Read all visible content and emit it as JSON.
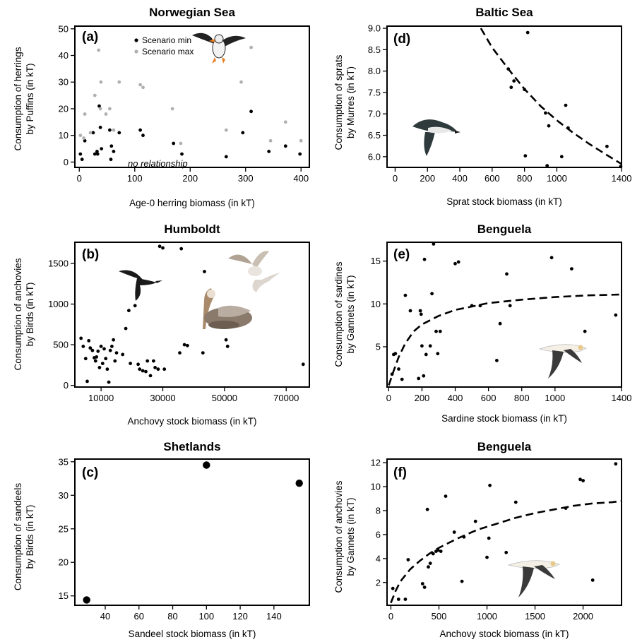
{
  "figure": {
    "panel_titles": [
      "Norwegian Sea",
      "Baltic Sea",
      "Humboldt",
      "Benguela",
      "Shetlands",
      "Benguela"
    ]
  },
  "chart_data": [
    {
      "id": "a",
      "type": "scatter",
      "title": "Norwegian Sea",
      "panel_label": "(a)",
      "xlabel": "Age-0 herring biomass (in kT)",
      "ylabel": [
        "Consumption of herrings",
        "by Puffins (in kT)"
      ],
      "xlim": [
        -8,
        415
      ],
      "ylim": [
        -2,
        51
      ],
      "xticks": [
        0,
        100,
        200,
        300,
        400
      ],
      "yticks": [
        0,
        10,
        20,
        30,
        40,
        50
      ],
      "annotation": "no relationship",
      "legend": {
        "position": "top-left",
        "entries": [
          "Scenario min",
          "Scenario max"
        ]
      },
      "icon": "puffin-icon",
      "series": [
        {
          "name": "Scenario min",
          "color": "#000000",
          "points": [
            [
              2,
              3
            ],
            [
              5,
              1
            ],
            [
              10,
              8
            ],
            [
              25,
              11
            ],
            [
              28,
              3
            ],
            [
              32,
              4
            ],
            [
              33,
              3
            ],
            [
              36,
              21
            ],
            [
              38,
              13
            ],
            [
              40,
              5
            ],
            [
              55,
              12
            ],
            [
              57,
              1
            ],
            [
              58,
              6
            ],
            [
              62,
              4
            ],
            [
              72,
              11
            ],
            [
              110,
              12
            ],
            [
              115,
              10
            ],
            [
              170,
              7
            ],
            [
              185,
              3
            ],
            [
              265,
              2
            ],
            [
              295,
              11
            ],
            [
              310,
              19
            ],
            [
              342,
              4
            ],
            [
              372,
              6
            ],
            [
              398,
              3
            ]
          ]
        },
        {
          "name": "Scenario max",
          "color": "#b0b0b0",
          "points": [
            [
              2,
              10
            ],
            [
              8,
              9
            ],
            [
              10,
              18
            ],
            [
              20,
              11
            ],
            [
              28,
              25
            ],
            [
              35,
              42
            ],
            [
              38,
              20
            ],
            [
              39,
              30
            ],
            [
              48,
              18
            ],
            [
              55,
              20
            ],
            [
              62,
              12
            ],
            [
              72,
              30
            ],
            [
              110,
              29
            ],
            [
              115,
              28
            ],
            [
              168,
              20
            ],
            [
              183,
              7
            ],
            [
              265,
              12
            ],
            [
              292,
              30
            ],
            [
              310,
              43
            ],
            [
              345,
              8
            ],
            [
              372,
              15
            ],
            [
              400,
              8
            ]
          ]
        }
      ]
    },
    {
      "id": "d",
      "type": "scatter",
      "title": "Baltic Sea",
      "panel_label": "(d)",
      "xlabel": "Sprat stock biomass (in kT)",
      "ylabel": [
        "Consumption of sprats",
        "by Murres (in kT)"
      ],
      "xlim": [
        -50,
        1400
      ],
      "ylim": [
        5.75,
        9.05
      ],
      "xticks": [
        0,
        200,
        400,
        600,
        800,
        1000,
        1400
      ],
      "yticks": [
        6.0,
        6.5,
        7.0,
        7.5,
        8.0,
        8.5,
        9.0
      ],
      "icon": "murre-icon",
      "series": [
        {
          "name": "",
          "color": "#000000",
          "points": [
            [
              700,
              8.05
            ],
            [
              718,
              7.62
            ],
            [
              735,
              7.77
            ],
            [
              800,
              7.57
            ],
            [
              805,
              6.02
            ],
            [
              820,
              8.9
            ],
            [
              930,
              7.02
            ],
            [
              940,
              5.79
            ],
            [
              950,
              6.72
            ],
            [
              1030,
              6.0
            ],
            [
              1055,
              7.2
            ],
            [
              1070,
              6.67
            ],
            [
              1310,
              6.24
            ],
            [
              1395,
              5.77
            ]
          ]
        }
      ],
      "trend": {
        "style": "dashed",
        "points": [
          [
            530,
            9.0
          ],
          [
            600,
            8.55
          ],
          [
            700,
            8.05
          ],
          [
            800,
            7.58
          ],
          [
            900,
            7.18
          ],
          [
            1000,
            6.85
          ],
          [
            1100,
            6.56
          ],
          [
            1200,
            6.3
          ],
          [
            1300,
            6.06
          ],
          [
            1400,
            5.83
          ]
        ]
      }
    },
    {
      "id": "b",
      "type": "scatter",
      "title": "Humboldt",
      "panel_label": "(b)",
      "xlabel": "Anchovy stock biomass (in kT)",
      "ylabel": [
        "Consumption of anchovies",
        "by Birds (in kT)"
      ],
      "xlim": [
        1500,
        77500
      ],
      "ylim": [
        -20,
        1760
      ],
      "xticks": [
        10000,
        30000,
        50000,
        70000
      ],
      "yticks": [
        0,
        500,
        1000,
        1500
      ],
      "icon": "bird-icon",
      "series": [
        {
          "name": "",
          "color": "#000000",
          "points": [
            [
              3500,
              580
            ],
            [
              4200,
              480
            ],
            [
              5000,
              330
            ],
            [
              5500,
              50
            ],
            [
              6000,
              550
            ],
            [
              6500,
              460
            ],
            [
              7200,
              430
            ],
            [
              7800,
              340
            ],
            [
              8200,
              300
            ],
            [
              8500,
              350
            ],
            [
              9000,
              420
            ],
            [
              9500,
              220
            ],
            [
              10000,
              480
            ],
            [
              10500,
              270
            ],
            [
              11000,
              450
            ],
            [
              11500,
              330
            ],
            [
              12000,
              200
            ],
            [
              12500,
              40
            ],
            [
              13000,
              430
            ],
            [
              13500,
              480
            ],
            [
              14000,
              560
            ],
            [
              14500,
              300
            ],
            [
              15000,
              400
            ],
            [
              17000,
              380
            ],
            [
              18000,
              700
            ],
            [
              19000,
              920
            ],
            [
              19500,
              270
            ],
            [
              21000,
              980
            ],
            [
              22000,
              260
            ],
            [
              22500,
              200
            ],
            [
              23500,
              180
            ],
            [
              24500,
              170
            ],
            [
              25000,
              300
            ],
            [
              26000,
              120
            ],
            [
              27000,
              300
            ],
            [
              27500,
              220
            ],
            [
              28500,
              200
            ],
            [
              29000,
              1710
            ],
            [
              30000,
              1690
            ],
            [
              30500,
              200
            ],
            [
              35500,
              400
            ],
            [
              36000,
              1680
            ],
            [
              37000,
              500
            ],
            [
              38000,
              490
            ],
            [
              43000,
              400
            ],
            [
              43500,
              1400
            ],
            [
              50500,
              560
            ],
            [
              51000,
              480
            ],
            [
              75500,
              260
            ]
          ]
        }
      ]
    },
    {
      "id": "e",
      "type": "scatter",
      "title": "Benguela",
      "panel_label": "(e)",
      "xlabel": "Sardine stock biomass (in kT)",
      "ylabel": [
        "Consumption of sardines",
        "by Gannets (in kT)"
      ],
      "xlim": [
        -10,
        1400
      ],
      "ylim": [
        0.3,
        17.2
      ],
      "xticks": [
        0,
        200,
        400,
        600,
        800,
        1000,
        1400
      ],
      "yticks": [
        5,
        10,
        15
      ],
      "icon": "gannet-icon",
      "series": [
        {
          "name": "",
          "color": "#000000",
          "points": [
            [
              20,
              1.8
            ],
            [
              30,
              4.1
            ],
            [
              40,
              4.2
            ],
            [
              60,
              2.4
            ],
            [
              80,
              1.2
            ],
            [
              100,
              11
            ],
            [
              130,
              9.2
            ],
            [
              180,
              1.3
            ],
            [
              190,
              9.2
            ],
            [
              195,
              8.8
            ],
            [
              200,
              5.1
            ],
            [
              210,
              1.6
            ],
            [
              215,
              15.2
            ],
            [
              225,
              4.1
            ],
            [
              250,
              5.1
            ],
            [
              260,
              11.2
            ],
            [
              270,
              17
            ],
            [
              285,
              6.8
            ],
            [
              295,
              4.2
            ],
            [
              310,
              6.8
            ],
            [
              400,
              14.7
            ],
            [
              420,
              14.9
            ],
            [
              500,
              9.8
            ],
            [
              550,
              9.8
            ],
            [
              650,
              3.4
            ],
            [
              670,
              7.7
            ],
            [
              710,
              13.5
            ],
            [
              730,
              9.8
            ],
            [
              980,
              15.4
            ],
            [
              1100,
              14.1
            ],
            [
              1180,
              6.8
            ],
            [
              1365,
              8.7
            ]
          ]
        }
      ],
      "trend": {
        "style": "dashed",
        "points": [
          [
            0,
            0.5
          ],
          [
            30,
            2.2
          ],
          [
            60,
            3.8
          ],
          [
            100,
            5.4
          ],
          [
            150,
            6.8
          ],
          [
            200,
            7.6
          ],
          [
            300,
            8.6
          ],
          [
            400,
            9.3
          ],
          [
            500,
            9.7
          ],
          [
            600,
            10.1
          ],
          [
            800,
            10.5
          ],
          [
            1000,
            10.8
          ],
          [
            1200,
            11.0
          ],
          [
            1400,
            11.1
          ]
        ]
      }
    },
    {
      "id": "c",
      "type": "scatter",
      "title": "Shetlands",
      "panel_label": "(c)",
      "xlabel": "Sandeel stock biomass (in kT)",
      "ylabel": [
        "Consumption of sandeels",
        "by Birds (in kT)"
      ],
      "xlim": [
        22,
        161
      ],
      "ylim": [
        13.6,
        35.4
      ],
      "xticks": [
        40,
        60,
        80,
        100,
        120,
        140
      ],
      "yticks": [
        15,
        20,
        25,
        30,
        35
      ],
      "series": [
        {
          "name": "",
          "color": "#000000",
          "points": [
            [
              29,
              14.4
            ],
            [
              100,
              34.5
            ],
            [
              155,
              31.8
            ]
          ]
        }
      ]
    },
    {
      "id": "f",
      "type": "scatter",
      "title": "Benguela",
      "panel_label": "(f)",
      "xlabel": "Anchovy stock biomass (in kT)",
      "ylabel": [
        "Consumption of anchovies",
        "by Gannets (in kT)"
      ],
      "xlim": [
        -40,
        2400
      ],
      "ylim": [
        0.1,
        12.3
      ],
      "xticks": [
        0,
        500,
        1000,
        1500,
        2000
      ],
      "yticks": [
        2,
        4,
        6,
        8,
        10,
        12
      ],
      "icon": "gannet-icon",
      "series": [
        {
          "name": "",
          "color": "#000000",
          "points": [
            [
              20,
              1.5
            ],
            [
              80,
              0.6
            ],
            [
              150,
              0.6
            ],
            [
              180,
              3.9
            ],
            [
              330,
              1.9
            ],
            [
              350,
              1.6
            ],
            [
              380,
              8.1
            ],
            [
              390,
              3.3
            ],
            [
              410,
              3.6
            ],
            [
              440,
              4.4
            ],
            [
              470,
              4.6
            ],
            [
              490,
              4.7
            ],
            [
              520,
              4.6
            ],
            [
              570,
              9.2
            ],
            [
              660,
              6.2
            ],
            [
              740,
              2.1
            ],
            [
              760,
              5.8
            ],
            [
              880,
              7.1
            ],
            [
              1000,
              4.1
            ],
            [
              1020,
              5.7
            ],
            [
              1030,
              10.1
            ],
            [
              1200,
              4.5
            ],
            [
              1300,
              8.7
            ],
            [
              1820,
              8.2
            ],
            [
              1970,
              10.6
            ],
            [
              2000,
              10.5
            ],
            [
              2100,
              2.2
            ],
            [
              2340,
              11.9
            ]
          ]
        }
      ],
      "trend": {
        "style": "dashed",
        "points": [
          [
            0,
            0.3
          ],
          [
            50,
            1.3
          ],
          [
            100,
            2.1
          ],
          [
            200,
            3.1
          ],
          [
            300,
            3.8
          ],
          [
            400,
            4.4
          ],
          [
            500,
            4.9
          ],
          [
            700,
            5.7
          ],
          [
            900,
            6.4
          ],
          [
            1100,
            6.9
          ],
          [
            1300,
            7.4
          ],
          [
            1500,
            7.8
          ],
          [
            1700,
            8.1
          ],
          [
            1900,
            8.4
          ],
          [
            2100,
            8.6
          ],
          [
            2300,
            8.7
          ],
          [
            2400,
            8.8
          ]
        ]
      }
    }
  ]
}
